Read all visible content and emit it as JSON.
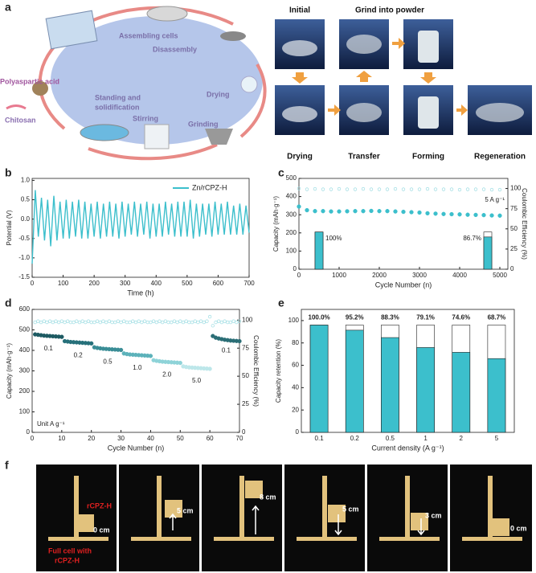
{
  "panel_labels": [
    "a",
    "b",
    "c",
    "d",
    "e",
    "f"
  ],
  "diagram": {
    "steps": [
      "Assembling cells",
      "Disassembly",
      "Drying",
      "Grinding",
      "Stirring",
      [
        "Standing and",
        "solidification"
      ]
    ],
    "inputs": [
      "Polyaspartic acid",
      "Chitosan"
    ],
    "photo_labels": [
      "Initial",
      "Grind into powder",
      "Drying",
      "Transfer",
      "Forming",
      "Regeneration"
    ]
  },
  "demo": [
    [
      "rCPZ-H",
      "0 cm",
      "Full cell with",
      "rCPZ-H"
    ],
    [
      "5 cm"
    ],
    [
      "8 cm"
    ],
    [
      "5 cm"
    ],
    [
      "3 cm"
    ],
    [
      "0 cm"
    ]
  ],
  "chart_data": [
    {
      "type": "line",
      "xlabel": "Time (h)",
      "ylabel": "Potential (V)",
      "x": [
        0,
        10,
        20,
        30,
        40,
        50,
        60,
        70,
        80,
        90,
        100,
        110,
        120,
        130,
        140,
        150,
        160,
        170,
        180,
        190,
        200,
        210,
        220,
        230,
        240,
        250,
        260,
        270,
        280,
        290,
        300,
        310,
        320,
        330,
        340,
        350,
        360,
        370,
        380,
        390,
        400,
        410,
        420,
        430,
        440,
        450,
        460,
        470,
        480,
        490,
        500,
        510,
        520,
        530,
        540,
        550,
        560,
        570,
        580,
        590,
        600,
        610,
        620,
        630,
        640,
        650,
        660,
        670,
        680,
        690,
        700
      ],
      "series": [
        {
          "name": "Zn/rCPZ-H",
          "color": "#3cbfcc",
          "values": [
            -1.15,
            0.75,
            -0.45,
            0.55,
            -0.55,
            0.5,
            -0.7,
            0.6,
            -0.55,
            0.45,
            -0.5,
            0.5,
            -0.5,
            0.45,
            -0.45,
            0.5,
            -0.5,
            0.45,
            -0.5,
            0.4,
            -0.45,
            0.45,
            -0.5,
            0.4,
            -0.45,
            0.45,
            -0.45,
            0.4,
            -0.5,
            0.45,
            -0.45,
            0.4,
            -0.4,
            0.45,
            -0.45,
            0.4,
            -0.4,
            0.45,
            -0.5,
            0.4,
            -0.45,
            0.4,
            -0.45,
            0.45,
            -0.4,
            0.4,
            -0.45,
            0.45,
            -0.45,
            0.45,
            -0.45,
            0.5,
            -0.5,
            0.4,
            -0.45,
            0.4,
            -0.4,
            0.4,
            -0.45,
            0.45,
            -0.4,
            0.4,
            -0.4,
            0.45,
            -0.4,
            0.35,
            -0.4,
            0.4,
            -0.4,
            0.35,
            -0.35
          ]
        }
      ],
      "xlim": [
        0,
        700
      ],
      "ylim": [
        -1.5,
        1.05
      ],
      "xticks": [
        0,
        100,
        200,
        300,
        400,
        500,
        600,
        700
      ],
      "yticks": [
        -1.5,
        {
          "value": -1,
          "label": "-1.0"
        },
        -0.5,
        {
          "value": 0,
          "label": "0.0"
        },
        0.5,
        {
          "value": 1,
          "label": "1.0"
        }
      ],
      "legend": "upper right"
    },
    {
      "type": "combo",
      "xlabel": "Cycle Number (n)",
      "ylabel": "Capacity (mAh·g⁻¹)",
      "y2label": "Coulombic Efficiency (%)",
      "x": [
        0,
        200,
        400,
        600,
        800,
        1000,
        1200,
        1400,
        1600,
        1800,
        2000,
        2200,
        2400,
        2600,
        2800,
        3000,
        3200,
        3400,
        3600,
        3800,
        4000,
        4200,
        4400,
        4600,
        4800,
        5000
      ],
      "series": [
        {
          "style": "markers",
          "color": "#3cbfcc",
          "values": [
            345,
            325,
            320,
            320,
            318,
            318,
            319,
            320,
            320,
            321,
            320,
            320,
            318,
            316,
            314,
            312,
            308,
            306,
            304,
            303,
            302,
            300,
            299,
            298,
            296,
            295
          ]
        },
        {
          "style": "markers",
          "axis": "y2",
          "color": "#9edde3",
          "values": [
            100,
            99,
            99.5,
            99,
            99,
            99.5,
            99,
            99,
            99.5,
            99,
            99,
            99,
            99.5,
            99,
            99,
            99,
            99.5,
            99,
            99,
            99,
            98.5,
            99,
            99,
            99,
            98.5,
            98.5
          ]
        }
      ],
      "bars": {
        "x": [
          500,
          4700
        ],
        "values": [
          100,
          86.7
        ],
        "value_labels": [
          "100%",
          "86.7%"
        ],
        "ylim": [
          0,
          244
        ],
        "color": "#3cbfcc"
      },
      "annotation": "5 A g⁻¹",
      "xlim": [
        0,
        5200
      ],
      "ylim": [
        0,
        500
      ],
      "y2lim": [
        0,
        112.5
      ],
      "xticks": [
        0,
        1000,
        2000,
        3000,
        4000,
        5000
      ],
      "yticks": [
        0,
        100,
        200,
        300,
        400,
        500
      ],
      "y2ticks": [
        0,
        25,
        50,
        75,
        100
      ]
    },
    {
      "type": "combo",
      "xlabel": "Cycle Number (n)",
      "ylabel": "Capacity (mAh·g⁻¹)",
      "y2label": "Coulombic Efficiency (%)",
      "x": [
        1,
        2,
        3,
        4,
        5,
        6,
        7,
        8,
        9,
        10,
        11,
        12,
        13,
        14,
        15,
        16,
        17,
        18,
        19,
        20,
        21,
        22,
        23,
        24,
        25,
        26,
        27,
        28,
        29,
        30,
        31,
        32,
        33,
        34,
        35,
        36,
        37,
        38,
        39,
        40,
        41,
        42,
        43,
        44,
        45,
        46,
        47,
        48,
        49,
        50,
        51,
        52,
        53,
        54,
        55,
        56,
        57,
        58,
        59,
        60,
        61,
        62,
        63,
        64,
        65,
        66,
        67,
        68,
        69,
        70
      ],
      "series": [
        {
          "style": "rate-markers",
          "color": "#2a7078",
          "values": [
            478,
            476,
            474,
            472,
            471,
            470,
            469,
            468,
            467,
            466,
            445,
            443,
            441,
            440,
            439,
            438,
            437,
            436,
            435,
            434,
            415,
            412,
            410,
            408,
            407,
            406,
            405,
            404,
            403,
            402,
            385,
            382,
            380,
            379,
            378,
            377,
            376,
            375,
            374,
            373,
            352,
            349,
            347,
            345,
            344,
            343,
            342,
            341,
            340,
            339,
            322,
            319,
            317,
            316,
            315,
            314,
            313,
            312,
            311,
            310,
            470,
            462,
            458,
            455,
            452,
            450,
            448,
            447,
            446,
            445
          ]
        },
        {
          "style": "markers",
          "axis": "y2",
          "color": "#9edde3",
          "values": [
            98,
            99,
            98,
            99,
            98,
            99,
            98,
            99,
            98,
            99,
            98,
            99,
            98,
            98,
            99,
            98,
            99,
            98,
            99,
            98,
            98,
            99,
            98,
            99,
            98,
            99,
            98,
            98,
            99,
            98,
            99,
            98,
            98,
            99,
            98,
            99,
            98,
            99,
            98,
            98,
            99,
            98,
            99,
            98,
            99,
            98,
            98,
            99,
            98,
            99,
            98,
            99,
            98,
            98,
            99,
            98,
            99,
            98,
            99,
            103,
            95,
            98,
            99,
            98,
            99,
            98,
            98,
            99,
            98,
            99
          ]
        }
      ],
      "rates": [
        {
          "label": "0.1",
          "color": "#1d5a62",
          "cycles": [
            1,
            10
          ]
        },
        {
          "label": "0.2",
          "color": "#26707a",
          "cycles": [
            11,
            20
          ]
        },
        {
          "label": "0.5",
          "color": "#3a8d96",
          "cycles": [
            21,
            30
          ]
        },
        {
          "label": "1.0",
          "color": "#5cb2ba",
          "cycles": [
            31,
            40
          ]
        },
        {
          "label": "2.0",
          "color": "#8ed3d8",
          "cycles": [
            41,
            50
          ]
        },
        {
          "label": "5.0",
          "color": "#bde7ea",
          "cycles": [
            51,
            60
          ]
        },
        {
          "label": "0.1",
          "color": "#2b6e76",
          "cycles": [
            61,
            70
          ]
        }
      ],
      "annotation": "Unit A g⁻¹",
      "xlim": [
        0,
        70
      ],
      "ylim": [
        0,
        600
      ],
      "y2lim": [
        0,
        109.5
      ],
      "xticks": [
        0,
        10,
        20,
        30,
        40,
        50,
        60,
        70
      ],
      "yticks": [
        0,
        100,
        200,
        300,
        400,
        500,
        600
      ],
      "y2ticks": [
        0,
        25,
        50,
        75,
        100
      ]
    },
    {
      "type": "bar",
      "xlabel": "Current density (A g⁻¹)",
      "ylabel": "Capacity retention (%)",
      "categories": [
        "0.1",
        "0.2",
        "0.5",
        "1",
        "2",
        "5"
      ],
      "series": [
        {
          "color": "#ffffff",
          "values": [
            96,
            96,
            96,
            96,
            96,
            96
          ]
        },
        {
          "color": "#3cbfcc",
          "values": [
            96,
            91.4,
            84.8,
            75.9,
            71.6,
            66
          ]
        }
      ],
      "retention": {
        "values": [
          100,
          95.2,
          88.3,
          79.1,
          74.6,
          68.7
        ],
        "value_labels": [
          "100.0%",
          "95.2%",
          "88.3%",
          "79.1%",
          "74.6%",
          "68.7%"
        ]
      },
      "ylim": [
        0,
        110
      ],
      "yticks": [
        0,
        20,
        40,
        60,
        80,
        100
      ]
    }
  ]
}
